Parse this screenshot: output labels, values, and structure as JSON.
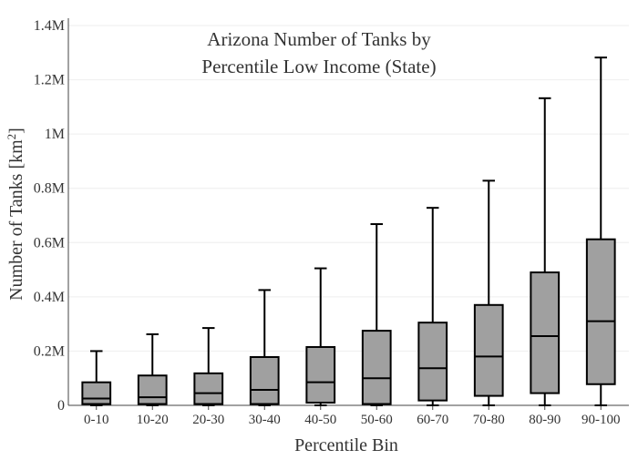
{
  "chart_data": {
    "type": "box",
    "title_lines": [
      "Arizona Number of Tanks by",
      "Percentile Low Income (State)"
    ],
    "xlabel": "Percentile Bin",
    "ylabel_main": "Number of Tanks  [km",
    "ylabel_sup": "2",
    "ylabel_end": "]",
    "ylim": [
      0,
      1400000
    ],
    "y_ticks": [
      {
        "value": 0,
        "label": "0"
      },
      {
        "value": 200000,
        "label": "0.2M"
      },
      {
        "value": 400000,
        "label": "0.4M"
      },
      {
        "value": 600000,
        "label": "0.6M"
      },
      {
        "value": 800000,
        "label": "0.8M"
      },
      {
        "value": 1000000,
        "label": "1M"
      },
      {
        "value": 1200000,
        "label": "1.2M"
      },
      {
        "value": 1400000,
        "label": "1.4M"
      }
    ],
    "grid": true,
    "box_color": "#a0a0a0",
    "line_color": "#000000",
    "categories": [
      "0-10",
      "10-20",
      "20-30",
      "30-40",
      "40-50",
      "50-60",
      "60-70",
      "70-80",
      "80-90",
      "90-100"
    ],
    "boxes": [
      {
        "min": 0,
        "q1": 5000,
        "median": 25000,
        "q3": 85000,
        "max": 200000
      },
      {
        "min": 0,
        "q1": 5000,
        "median": 30000,
        "q3": 110000,
        "max": 262000
      },
      {
        "min": 0,
        "q1": 5000,
        "median": 45000,
        "q3": 118000,
        "max": 285000
      },
      {
        "min": 0,
        "q1": 5000,
        "median": 57000,
        "q3": 178000,
        "max": 425000
      },
      {
        "min": 0,
        "q1": 10000,
        "median": 85000,
        "q3": 215000,
        "max": 505000
      },
      {
        "min": 0,
        "q1": 5000,
        "median": 100000,
        "q3": 275000,
        "max": 668000
      },
      {
        "min": 0,
        "q1": 18000,
        "median": 137000,
        "q3": 305000,
        "max": 728000
      },
      {
        "min": 0,
        "q1": 35000,
        "median": 180000,
        "q3": 370000,
        "max": 828000
      },
      {
        "min": 0,
        "q1": 45000,
        "median": 255000,
        "q3": 490000,
        "max": 1132000
      },
      {
        "min": 0,
        "q1": 78000,
        "median": 310000,
        "q3": 612000,
        "max": 1282000
      }
    ]
  }
}
